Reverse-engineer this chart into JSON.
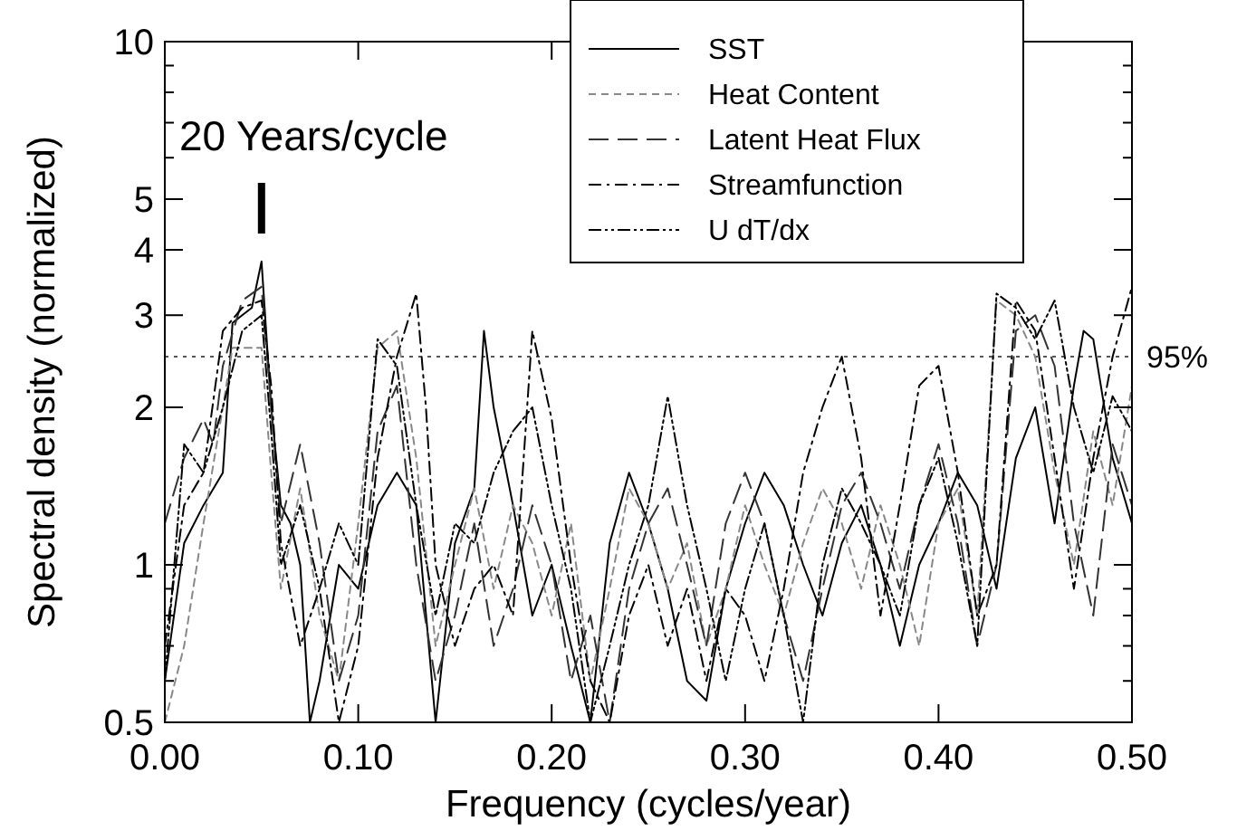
{
  "chart_data": {
    "type": "line",
    "xlabel": "Frequency (cycles/year)",
    "ylabel": "Spectral density (normalized)",
    "log": "y",
    "xlim": [
      0,
      0.5
    ],
    "ylim": [
      0.5,
      10
    ],
    "xticks": [
      {
        "value": 0,
        "label": "0.00"
      },
      {
        "value": 0.1,
        "label": "0.10"
      },
      {
        "value": 0.2,
        "label": "0.20"
      },
      {
        "value": 0.3,
        "label": "0.30"
      },
      {
        "value": 0.4,
        "label": "0.40"
      },
      {
        "value": 0.5,
        "label": "0.50"
      }
    ],
    "yticks": [
      {
        "value": 0.5,
        "label": "0.5"
      },
      {
        "value": 0.6,
        "label": null
      },
      {
        "value": 0.7,
        "label": null
      },
      {
        "value": 0.8,
        "label": null
      },
      {
        "value": 0.9,
        "label": null
      },
      1,
      2,
      3,
      4,
      5,
      {
        "value": 6,
        "label": null
      },
      {
        "value": 7,
        "label": null
      },
      {
        "value": 8,
        "label": null
      },
      {
        "value": 9,
        "label": null
      },
      10
    ],
    "grid": false,
    "legend": "top right",
    "marker": "none",
    "ref_lines": [
      {
        "axis": "y",
        "value": 2.5,
        "line_style": "dotted",
        "color": "#555555"
      }
    ],
    "annotations": [
      "20 Years/cycle",
      {
        "text": "95%",
        "x": 0.5,
        "y": 2.5
      }
    ],
    "series": [
      {
        "name": "SST",
        "color": "#000000",
        "line_style": "solid",
        "x": [
          0,
          0.01,
          0.02,
          0.03,
          0.035,
          0.04,
          0.045,
          0.05,
          0.055,
          0.06,
          0.065,
          0.07,
          0.075,
          0.08,
          0.09,
          0.1,
          0.11,
          0.12,
          0.13,
          0.14,
          0.15,
          0.16,
          0.165,
          0.17,
          0.18,
          0.19,
          0.2,
          0.21,
          0.22,
          0.23,
          0.24,
          0.25,
          0.26,
          0.27,
          0.28,
          0.29,
          0.3,
          0.31,
          0.32,
          0.33,
          0.34,
          0.35,
          0.36,
          0.37,
          0.38,
          0.39,
          0.4,
          0.41,
          0.42,
          0.43,
          0.44,
          0.45,
          0.46,
          0.47,
          0.475,
          0.48,
          0.49,
          0.5
        ],
        "values": [
          0.6,
          1.1,
          1.3,
          1.5,
          2.9,
          3.0,
          3.1,
          3.8,
          2.0,
          1.3,
          1.2,
          1.0,
          0.5,
          0.6,
          1.0,
          0.9,
          1.3,
          1.5,
          1.3,
          0.5,
          1.1,
          1.4,
          2.8,
          2.0,
          1.3,
          0.8,
          1.0,
          0.7,
          0.5,
          1.1,
          1.5,
          1.2,
          0.9,
          0.6,
          0.55,
          0.9,
          1.2,
          1.5,
          1.3,
          1.0,
          0.8,
          1.1,
          1.3,
          1.0,
          0.7,
          1.0,
          1.2,
          1.5,
          1.3,
          0.9,
          1.6,
          2.0,
          1.2,
          2.2,
          2.8,
          2.7,
          1.6,
          1.2
        ]
      },
      {
        "name": "Heat Content",
        "color": "#888888",
        "line_style": "dashed",
        "x": [
          0,
          0.01,
          0.02,
          0.03,
          0.035,
          0.04,
          0.05,
          0.055,
          0.06,
          0.07,
          0.08,
          0.09,
          0.1,
          0.11,
          0.12,
          0.13,
          0.14,
          0.15,
          0.16,
          0.17,
          0.18,
          0.19,
          0.2,
          0.21,
          0.22,
          0.23,
          0.24,
          0.25,
          0.26,
          0.27,
          0.28,
          0.29,
          0.3,
          0.31,
          0.32,
          0.33,
          0.34,
          0.35,
          0.36,
          0.37,
          0.38,
          0.39,
          0.4,
          0.41,
          0.42,
          0.43,
          0.44,
          0.45,
          0.46,
          0.47,
          0.48,
          0.49,
          0.5
        ],
        "values": [
          0.5,
          0.7,
          1.2,
          2.0,
          2.6,
          2.6,
          2.6,
          1.5,
          0.9,
          1.4,
          0.8,
          0.6,
          1.2,
          2.6,
          2.8,
          1.6,
          0.7,
          1.0,
          1.4,
          0.9,
          1.3,
          1.1,
          0.8,
          1.2,
          0.6,
          0.9,
          1.4,
          1.2,
          0.9,
          1.1,
          0.7,
          0.9,
          1.3,
          1.0,
          0.8,
          1.1,
          1.4,
          1.2,
          0.9,
          1.3,
          1.0,
          0.7,
          1.2,
          1.4,
          0.8,
          3.2,
          3.0,
          2.5,
          1.5,
          1.0,
          1.8,
          1.3,
          2.2
        ]
      },
      {
        "name": "Latent Heat Flux",
        "color": "#333333",
        "line_style": "dashed",
        "x": [
          0,
          0.01,
          0.02,
          0.025,
          0.03,
          0.04,
          0.05,
          0.055,
          0.06,
          0.07,
          0.08,
          0.09,
          0.1,
          0.11,
          0.12,
          0.13,
          0.14,
          0.15,
          0.16,
          0.17,
          0.18,
          0.19,
          0.2,
          0.21,
          0.22,
          0.23,
          0.24,
          0.25,
          0.26,
          0.27,
          0.28,
          0.29,
          0.3,
          0.31,
          0.32,
          0.33,
          0.34,
          0.35,
          0.36,
          0.37,
          0.38,
          0.39,
          0.4,
          0.41,
          0.42,
          0.43,
          0.44,
          0.45,
          0.46,
          0.47,
          0.48,
          0.49,
          0.5
        ],
        "values": [
          1.2,
          1.6,
          1.9,
          1.7,
          2.4,
          3.2,
          3.4,
          2.0,
          1.2,
          1.7,
          1.1,
          0.6,
          0.8,
          1.8,
          2.2,
          1.0,
          0.6,
          0.8,
          1.2,
          0.7,
          0.9,
          1.3,
          1.0,
          0.6,
          0.8,
          0.5,
          0.9,
          1.2,
          1.4,
          1.0,
          0.7,
          1.2,
          1.5,
          1.2,
          0.8,
          0.6,
          0.9,
          1.3,
          1.5,
          1.2,
          0.9,
          1.3,
          1.7,
          1.2,
          0.7,
          1.0,
          2.8,
          3.0,
          2.4,
          1.2,
          0.8,
          1.7,
          1.3
        ]
      },
      {
        "name": "Streamfunction",
        "color": "#000000",
        "line_style": "dashed",
        "x": [
          0,
          0.01,
          0.02,
          0.03,
          0.04,
          0.05,
          0.055,
          0.06,
          0.07,
          0.08,
          0.09,
          0.1,
          0.11,
          0.12,
          0.13,
          0.135,
          0.14,
          0.15,
          0.16,
          0.17,
          0.18,
          0.19,
          0.2,
          0.21,
          0.22,
          0.23,
          0.24,
          0.25,
          0.26,
          0.27,
          0.28,
          0.29,
          0.3,
          0.31,
          0.32,
          0.33,
          0.34,
          0.35,
          0.36,
          0.37,
          0.38,
          0.39,
          0.4,
          0.41,
          0.42,
          0.43,
          0.44,
          0.45,
          0.46,
          0.47,
          0.48,
          0.49,
          0.5
        ],
        "values": [
          0.7,
          1.3,
          1.5,
          2.8,
          3.1,
          3.2,
          2.2,
          1.1,
          0.7,
          0.9,
          0.5,
          0.7,
          1.6,
          2.5,
          3.3,
          2.0,
          1.0,
          0.7,
          0.9,
          1.0,
          0.8,
          2.8,
          1.9,
          1.0,
          0.6,
          0.5,
          0.8,
          1.0,
          0.7,
          0.9,
          0.6,
          0.9,
          0.8,
          0.6,
          0.9,
          1.5,
          2.0,
          2.5,
          1.6,
          0.8,
          1.3,
          2.2,
          2.4,
          1.5,
          0.8,
          1.0,
          3.2,
          2.8,
          1.6,
          0.9,
          1.6,
          2.5,
          3.4
        ]
      },
      {
        "name": "U dT/dx",
        "color": "#000000",
        "line_style": "dotted",
        "x": [
          0,
          0.01,
          0.02,
          0.03,
          0.04,
          0.05,
          0.055,
          0.06,
          0.07,
          0.08,
          0.09,
          0.1,
          0.11,
          0.12,
          0.13,
          0.14,
          0.15,
          0.16,
          0.17,
          0.18,
          0.19,
          0.2,
          0.21,
          0.22,
          0.23,
          0.24,
          0.25,
          0.26,
          0.27,
          0.28,
          0.29,
          0.3,
          0.31,
          0.32,
          0.33,
          0.34,
          0.35,
          0.36,
          0.37,
          0.38,
          0.39,
          0.4,
          0.41,
          0.42,
          0.43,
          0.44,
          0.45,
          0.46,
          0.47,
          0.48,
          0.49,
          0.5
        ],
        "values": [
          0.6,
          1.7,
          1.5,
          2.0,
          2.8,
          3.0,
          1.8,
          1.0,
          1.3,
          0.9,
          1.2,
          1.0,
          2.7,
          2.4,
          1.3,
          0.8,
          1.2,
          1.1,
          1.5,
          1.8,
          2.0,
          1.3,
          0.9,
          0.5,
          0.7,
          1.0,
          1.3,
          2.1,
          1.3,
          0.9,
          0.6,
          0.9,
          1.2,
          0.8,
          0.5,
          1.0,
          1.4,
          1.2,
          1.0,
          0.8,
          1.3,
          1.6,
          1.1,
          0.7,
          3.3,
          3.1,
          2.7,
          3.2,
          2.0,
          1.5,
          2.1,
          1.8
        ]
      }
    ]
  }
}
